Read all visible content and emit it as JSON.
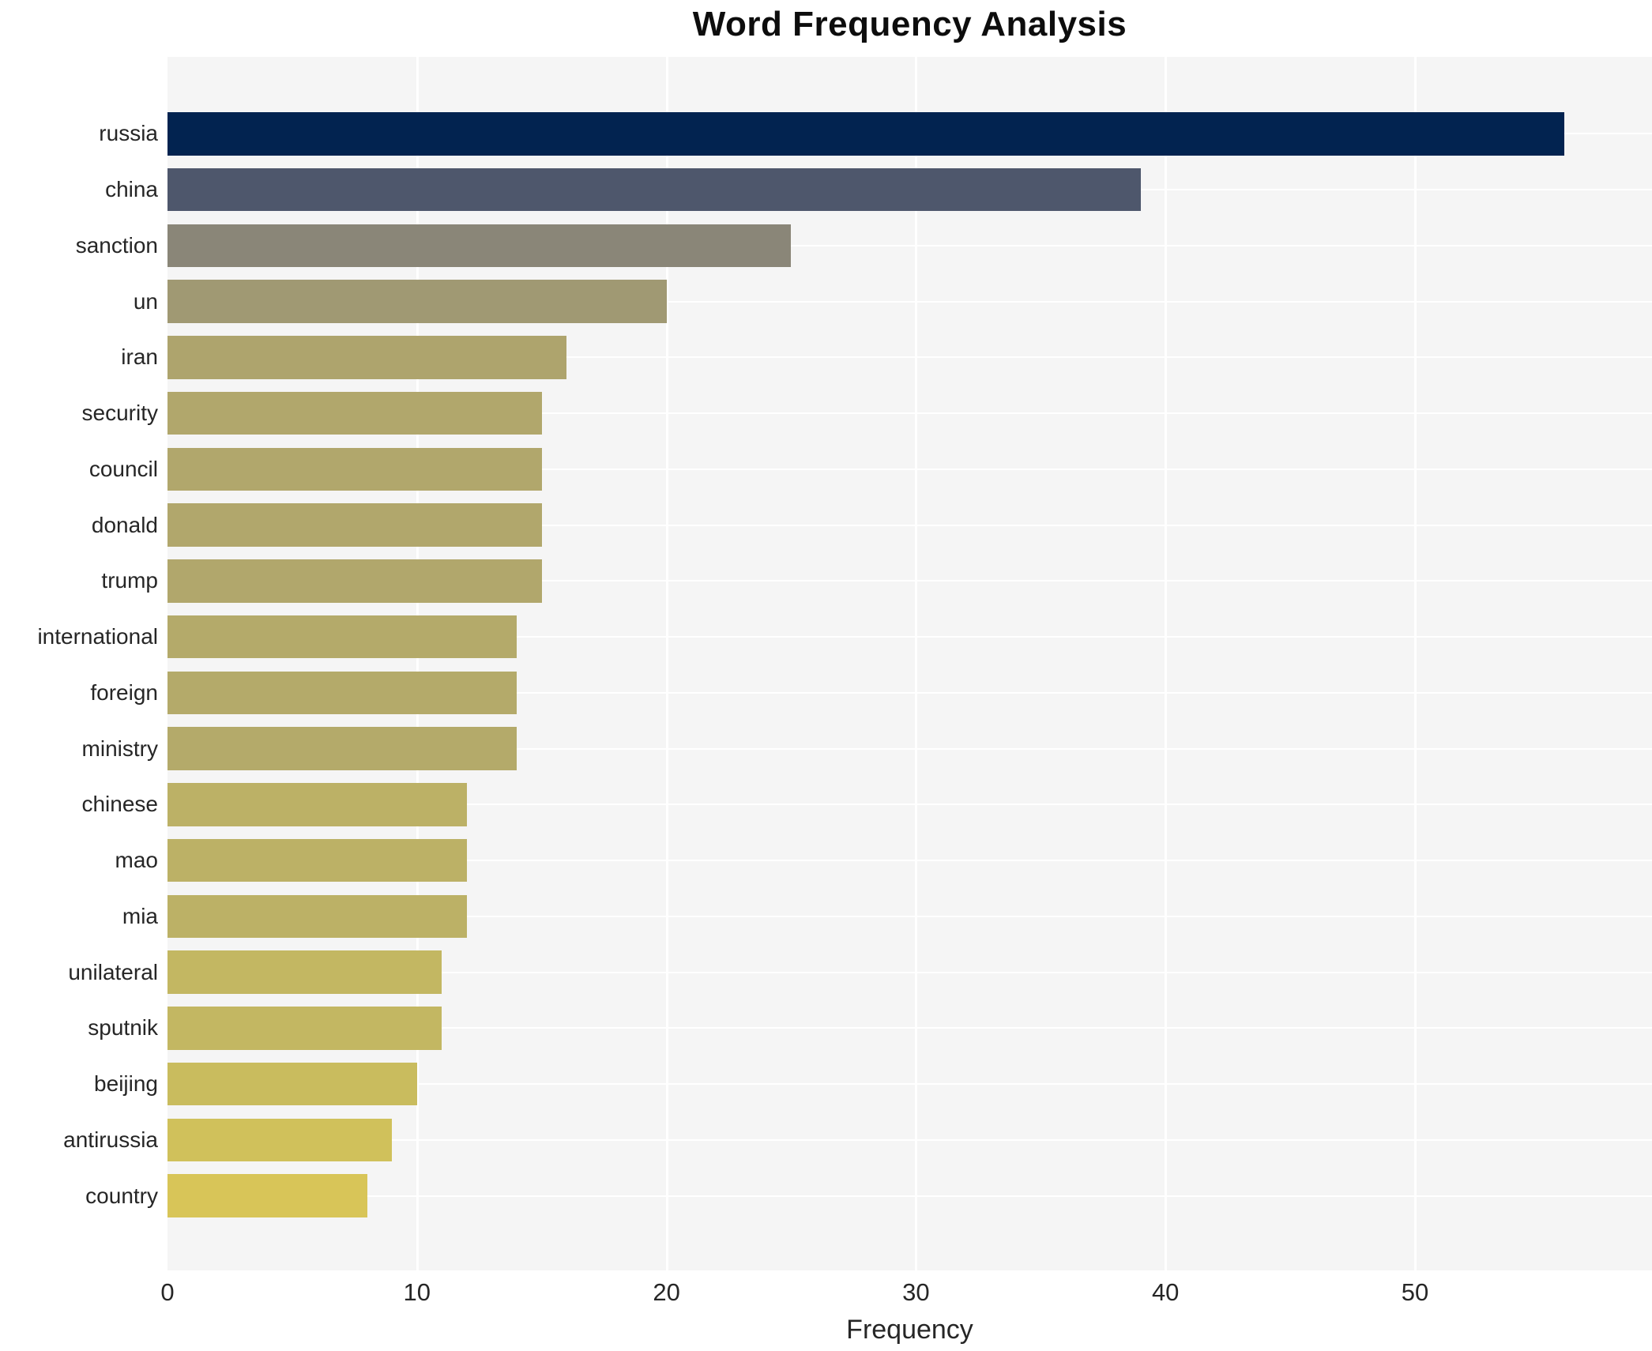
{
  "chart_data": {
    "type": "bar",
    "orientation": "horizontal",
    "title": "Word Frequency Analysis",
    "xlabel": "Frequency",
    "ylabel": "",
    "categories": [
      "russia",
      "china",
      "sanction",
      "un",
      "iran",
      "security",
      "council",
      "donald",
      "trump",
      "international",
      "foreign",
      "ministry",
      "chinese",
      "mao",
      "mia",
      "unilateral",
      "sputnik",
      "beijing",
      "antirussia",
      "country"
    ],
    "values": [
      56,
      39,
      25,
      20,
      16,
      15,
      15,
      15,
      15,
      14,
      14,
      14,
      12,
      12,
      12,
      11,
      11,
      10,
      9,
      8
    ],
    "bar_colors": [
      "#022350",
      "#4e576c",
      "#8a8678",
      "#a09973",
      "#aea46d",
      "#b1a76c",
      "#b1a76c",
      "#b1a76c",
      "#b1a76c",
      "#b4aa6a",
      "#b4aa6a",
      "#b4aa6a",
      "#bcb166",
      "#bcb166",
      "#bcb166",
      "#c3b762",
      "#c3b762",
      "#c9bc5e",
      "#d0c15b",
      "#d8c558"
    ],
    "xticks": [
      0,
      10,
      20,
      30,
      40,
      50
    ],
    "xlim": [
      0,
      59.5
    ],
    "grid": "white gridlines on light-gray plot background",
    "legend": "none"
  },
  "colors": {
    "plot_bg": "#f5f5f5",
    "grid": "#ffffff",
    "text": "#262626",
    "title": "#0d0d0d"
  }
}
